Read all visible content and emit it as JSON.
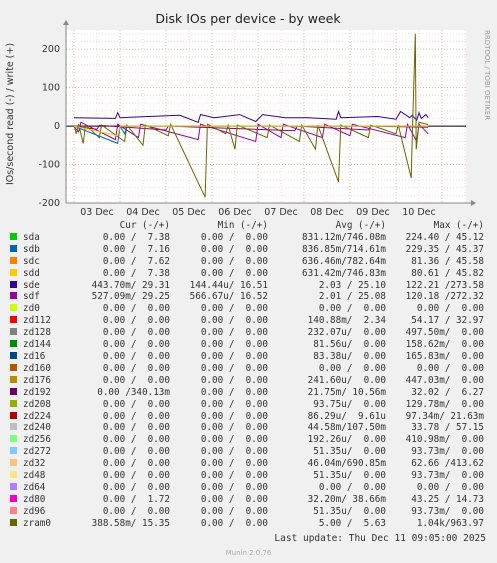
{
  "title": "Disk IOs per device - by week",
  "y_label": "IOs/second read (-) / write (+)",
  "side_text": "RRDTOOL / TOBI OETIKER",
  "chart_data": {
    "type": "line",
    "title": "Disk IOs per device - by week",
    "ylabel": "IOs/second read (-) / write (+)",
    "ylim": [
      -200,
      250
    ],
    "yticks": [
      -200,
      -100,
      0,
      100,
      200
    ],
    "x_ticks": [
      "03 Dec",
      "04 Dec",
      "05 Dec",
      "06 Dec",
      "07 Dec",
      "08 Dec",
      "09 Dec",
      "10 Dec"
    ],
    "grid": true,
    "series": [
      {
        "name": "sde",
        "color": "#330099",
        "baseline": 22,
        "points": [
          [
            0,
            22
          ],
          [
            0.9,
            20
          ],
          [
            0.95,
            35
          ],
          [
            1.0,
            22
          ],
          [
            2.3,
            28
          ],
          [
            2.7,
            10
          ],
          [
            2.75,
            30
          ],
          [
            3.05,
            22
          ],
          [
            3.6,
            30
          ],
          [
            3.95,
            12
          ],
          [
            4.1,
            30
          ],
          [
            4.6,
            22
          ],
          [
            5.1,
            22
          ],
          [
            5.7,
            18
          ],
          [
            5.75,
            38
          ],
          [
            5.8,
            22
          ],
          [
            6.6,
            25
          ],
          [
            7.0,
            18
          ],
          [
            7.1,
            38
          ],
          [
            7.3,
            22
          ],
          [
            7.35,
            28
          ],
          [
            7.45,
            15
          ],
          [
            7.5,
            35
          ],
          [
            7.55,
            20
          ],
          [
            7.65,
            30
          ],
          [
            7.7,
            22
          ]
        ]
      },
      {
        "name": "sdf",
        "color": "#990099",
        "baseline": -2,
        "points": [
          [
            0,
            -2
          ],
          [
            0.1,
            -15
          ],
          [
            0.15,
            10
          ],
          [
            0.9,
            -35
          ],
          [
            0.95,
            5
          ],
          [
            1.4,
            -30
          ],
          [
            1.45,
            5
          ],
          [
            2.7,
            -35
          ],
          [
            2.75,
            5
          ],
          [
            3.95,
            -40
          ],
          [
            4.0,
            5
          ],
          [
            4.5,
            -30
          ],
          [
            4.55,
            5
          ],
          [
            5.4,
            -30
          ],
          [
            5.45,
            5
          ],
          [
            6.0,
            -25
          ],
          [
            6.05,
            5
          ],
          [
            7.2,
            -30
          ],
          [
            7.25,
            5
          ],
          [
            7.45,
            -40
          ],
          [
            7.5,
            5
          ],
          [
            7.7,
            -20
          ]
        ]
      },
      {
        "name": "zd192",
        "color": "#990066",
        "baseline": -1,
        "points": [
          [
            0,
            -1
          ],
          [
            0.5,
            -8
          ],
          [
            0.55,
            2
          ],
          [
            2.0,
            -10
          ],
          [
            2.05,
            0
          ],
          [
            4.8,
            -12
          ],
          [
            4.85,
            0
          ],
          [
            6.4,
            -10
          ],
          [
            6.45,
            0
          ],
          [
            7.7,
            -3
          ]
        ]
      },
      {
        "name": "zram0",
        "color": "#666600",
        "baseline": 2,
        "points": [
          [
            0,
            2
          ],
          [
            0.05,
            -20
          ],
          [
            0.1,
            5
          ],
          [
            0.2,
            -45
          ],
          [
            0.25,
            3
          ],
          [
            0.55,
            -30
          ],
          [
            0.6,
            3
          ],
          [
            1.1,
            -40
          ],
          [
            1.15,
            3
          ],
          [
            1.5,
            -50
          ],
          [
            1.55,
            3
          ],
          [
            2.05,
            -25
          ],
          [
            2.1,
            5
          ],
          [
            2.85,
            -185
          ],
          [
            2.9,
            5
          ],
          [
            3.3,
            -20
          ],
          [
            3.35,
            3
          ],
          [
            3.5,
            -60
          ],
          [
            3.55,
            3
          ],
          [
            4.2,
            -30
          ],
          [
            4.25,
            3
          ],
          [
            4.9,
            -40
          ],
          [
            4.95,
            3
          ],
          [
            5.25,
            -60
          ],
          [
            5.3,
            3
          ],
          [
            5.75,
            -145
          ],
          [
            5.8,
            3
          ],
          [
            6.4,
            -30
          ],
          [
            6.45,
            3
          ],
          [
            7.0,
            -20
          ],
          [
            7.05,
            3
          ],
          [
            7.33,
            -135
          ],
          [
            7.36,
            3
          ],
          [
            7.42,
            240
          ],
          [
            7.44,
            -60
          ],
          [
            7.5,
            10
          ],
          [
            7.7,
            4
          ]
        ]
      },
      {
        "name": "sdb",
        "color": "#0066b3",
        "baseline": 0,
        "points": [
          [
            0,
            0
          ],
          [
            0.95,
            -45
          ],
          [
            1.0,
            0
          ],
          [
            1.1,
            -20
          ],
          [
            1.15,
            0
          ],
          [
            7.7,
            0
          ]
        ]
      },
      {
        "name": "sdd",
        "color": "#ffcc00",
        "baseline": 0,
        "points": [
          [
            0,
            0
          ],
          [
            0.95,
            -25
          ],
          [
            1.0,
            0
          ],
          [
            7.7,
            0
          ]
        ]
      }
    ]
  },
  "legend": {
    "headers": [
      "Cur (-/+)",
      "Min (-/+)",
      "Avg (-/+)",
      "Max (-/+)"
    ],
    "rows": [
      {
        "name": "sda",
        "color": "#00cc00",
        "cur": "0.00 /  7.38",
        "min": "0.00 /  0.00",
        "avg": "831.12m/746.08m",
        "max": "224.40 / 45.12"
      },
      {
        "name": "sdb",
        "color": "#0066b3",
        "cur": "0.00 /  7.16",
        "min": "0.00 /  0.00",
        "avg": "836.85m/714.61m",
        "max": "229.35 / 45.37"
      },
      {
        "name": "sdc",
        "color": "#ff8000",
        "cur": "0.00 /  7.62",
        "min": "0.00 /  0.00",
        "avg": "636.46m/782.64m",
        "max": "81.36 / 45.58"
      },
      {
        "name": "sdd",
        "color": "#ffcc00",
        "cur": "0.00 /  7.38",
        "min": "0.00 /  0.00",
        "avg": "631.42m/746.83m",
        "max": "80.61 / 45.82"
      },
      {
        "name": "sde",
        "color": "#330099",
        "cur": "443.70m/ 29.31",
        "min": "144.44u/ 16.51",
        "avg": "2.03 / 25.10",
        "max": "122.21 /273.58"
      },
      {
        "name": "sdf",
        "color": "#990099",
        "cur": "527.09m/ 29.25",
        "min": "566.67u/ 16.52",
        "avg": "2.01 / 25.08",
        "max": "120.18 /272.32"
      },
      {
        "name": "zd0",
        "color": "#ccff00",
        "cur": "0.00 /  0.00",
        "min": "0.00 /  0.00",
        "avg": "0.00 /  0.00",
        "max": "0.00 /  0.00"
      },
      {
        "name": "zd112",
        "color": "#ff0000",
        "cur": "0.00 /  0.00",
        "min": "0.00 /  0.00",
        "avg": "140.88m/  2.34",
        "max": "54.17 / 32.97"
      },
      {
        "name": "zd128",
        "color": "#808080",
        "cur": "0.00 /  0.00",
        "min": "0.00 /  0.00",
        "avg": "232.07u/  0.00",
        "max": "497.50m/  0.00"
      },
      {
        "name": "zd144",
        "color": "#008f00",
        "cur": "0.00 /  0.00",
        "min": "0.00 /  0.00",
        "avg": "81.56u/  0.00",
        "max": "158.62m/  0.00"
      },
      {
        "name": "zd16",
        "color": "#00487d",
        "cur": "0.00 /  0.00",
        "min": "0.00 /  0.00",
        "avg": "83.38u/  0.00",
        "max": "165.83m/  0.00"
      },
      {
        "name": "zd160",
        "color": "#b35a00",
        "cur": "0.00 /  0.00",
        "min": "0.00 /  0.00",
        "avg": "0.00 /  0.00",
        "max": "0.00 /  0.00"
      },
      {
        "name": "zd176",
        "color": "#b38f00",
        "cur": "0.00 /  0.00",
        "min": "0.00 /  0.00",
        "avg": "241.60u/  0.00",
        "max": "447.03m/  0.00"
      },
      {
        "name": "zd192",
        "color": "#6b006b",
        "cur": "0.00 /340.13m",
        "min": "0.00 /  0.00",
        "avg": "21.75m/ 10.56m",
        "max": "32.02 /  6.27"
      },
      {
        "name": "zd208",
        "color": "#8fb300",
        "cur": "0.00 /  0.00",
        "min": "0.00 /  0.00",
        "avg": "93.75u/  0.00",
        "max": "129.78m/  0.00"
      },
      {
        "name": "zd224",
        "color": "#b30000",
        "cur": "0.00 /  0.00",
        "min": "0.00 /  0.00",
        "avg": "86.29u/  9.61u",
        "max": "97.34m/ 21.63m"
      },
      {
        "name": "zd240",
        "color": "#bebebe",
        "cur": "0.00 /  0.00",
        "min": "0.00 /  0.00",
        "avg": "44.58m/107.50m",
        "max": "33.78 / 57.15"
      },
      {
        "name": "zd256",
        "color": "#80ff80",
        "cur": "0.00 /  0.00",
        "min": "0.00 /  0.00",
        "avg": "192.26u/  0.00",
        "max": "410.98m/  0.00"
      },
      {
        "name": "zd272",
        "color": "#80c9ff",
        "cur": "0.00 /  0.00",
        "min": "0.00 /  0.00",
        "avg": "51.35u/  0.00",
        "max": "93.73m/  0.00"
      },
      {
        "name": "zd32",
        "color": "#ffc080",
        "cur": "0.00 /  0.00",
        "min": "0.00 /  0.00",
        "avg": "46.04m/690.85m",
        "max": "62.66 /413.62"
      },
      {
        "name": "zd48",
        "color": "#ffe680",
        "cur": "0.00 /  0.00",
        "min": "0.00 /  0.00",
        "avg": "51.35u/  0.00",
        "max": "93.73m/  0.00"
      },
      {
        "name": "zd64",
        "color": "#aa80ff",
        "cur": "0.00 /  0.00",
        "min": "0.00 /  0.00",
        "avg": "0.00 /  0.00",
        "max": "0.00 /  0.00"
      },
      {
        "name": "zd80",
        "color": "#ee00cc",
        "cur": "0.00 /  1.72",
        "min": "0.00 /  0.00",
        "avg": "32.20m/ 38.66m",
        "max": "43.25 / 14.73"
      },
      {
        "name": "zd96",
        "color": "#ff8080",
        "cur": "0.00 /  0.00",
        "min": "0.00 /  0.00",
        "avg": "51.35u/  0.00",
        "max": "93.73m/  0.00"
      },
      {
        "name": "zram0",
        "color": "#666600",
        "cur": "388.58m/ 15.35",
        "min": "0.00 /  0.00",
        "avg": "5.00 /  5.63",
        "max": "1.04k/963.97"
      }
    ]
  },
  "footer": "Last update: Thu Dec 11 09:05:00 2025",
  "munin_version": "Munin 2.0.76"
}
